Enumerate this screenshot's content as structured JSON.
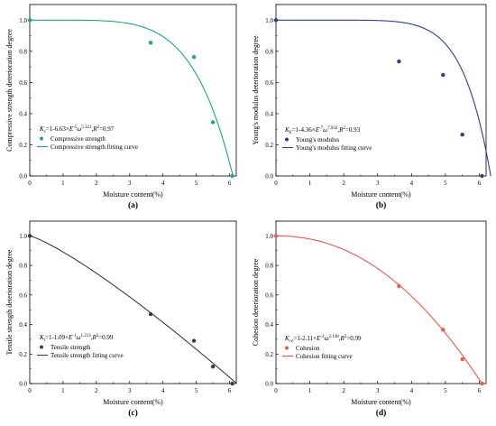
{
  "chart_data": [
    {
      "type": "scatter",
      "panel_label": "(a)",
      "xlabel": "Moisture content(%)",
      "ylabel": "Compressive strength deterioration degree",
      "xlim": [
        0,
        6.2
      ],
      "ylim": [
        0,
        1.1
      ],
      "xticks": [
        "0",
        "1",
        "2",
        "3",
        "4",
        "5",
        "6"
      ],
      "yticks": [
        "0.0",
        "0.2",
        "0.4",
        "0.6",
        "0.8",
        "1.0"
      ],
      "color": "#1aa68e",
      "equation": "Kc=1-6.63×E-5ω5.321,R2=0.97",
      "series": [
        {
          "name": "Compressive strength",
          "kind": "points",
          "x": [
            0,
            3.63,
            4.93,
            5.5,
            6.08
          ],
          "y": [
            1.0,
            0.855,
            0.763,
            0.345,
            0.0
          ]
        },
        {
          "name": "Compressive strength fitting curve",
          "kind": "curve",
          "A": 6.63e-05,
          "n": 5.321
        }
      ]
    },
    {
      "type": "scatter",
      "panel_label": "(b)",
      "xlabel": "Moisture content(%)",
      "ylabel": "Young's modulus deterioration degree",
      "xlim": [
        0,
        6.2
      ],
      "ylim": [
        0,
        1.1
      ],
      "xticks": [
        "0",
        "1",
        "2",
        "3",
        "4",
        "5",
        "6"
      ],
      "yticks": [
        "0.0",
        "0.2",
        "0.4",
        "0.6",
        "0.8",
        "1.0"
      ],
      "color": "#2b3f8e",
      "equation": "KE=1-4.36×E-7ω7.932,R2=0.93",
      "series": [
        {
          "name": "Young's modulus",
          "kind": "points",
          "x": [
            0,
            3.63,
            4.93,
            5.5,
            6.08
          ],
          "y": [
            1.0,
            0.735,
            0.648,
            0.265,
            0.0
          ]
        },
        {
          "name": "Young's modulus fitting curve",
          "kind": "curve",
          "A": 4.36e-07,
          "n": 7.932
        }
      ]
    },
    {
      "type": "scatter",
      "panel_label": "(c)",
      "xlabel": "Moisture content(%)",
      "ylabel": "Tensile strength deterioration degree",
      "xlim": [
        0,
        6.2
      ],
      "ylim": [
        0,
        1.1
      ],
      "xticks": [
        "0",
        "1",
        "2",
        "3",
        "4",
        "5",
        "6"
      ],
      "yticks": [
        "0.0",
        "0.2",
        "0.4",
        "0.6",
        "0.8",
        "1.0"
      ],
      "color": "#3c3c3c",
      "equation": "Kt=1-1.09×E-1ω1.213,R2=0.99",
      "series": [
        {
          "name": "Tensile strength",
          "kind": "points",
          "x": [
            0,
            3.63,
            4.93,
            5.5,
            6.08
          ],
          "y": [
            1.0,
            0.47,
            0.29,
            0.115,
            0.0
          ]
        },
        {
          "name": "Tensile strength fitting curve",
          "kind": "curve",
          "A": 0.109,
          "n": 1.213
        }
      ]
    },
    {
      "type": "scatter",
      "panel_label": "(d)",
      "xlabel": "Moisture content(%)",
      "ylabel": "Cohesion deterioration degree",
      "xlim": [
        0,
        6.2
      ],
      "ylim": [
        0,
        1.1
      ],
      "xticks": [
        "0",
        "1",
        "2",
        "3",
        "4",
        "5",
        "6"
      ],
      "yticks": [
        "0.0",
        "0.2",
        "0.4",
        "0.6",
        "0.8",
        "1.0"
      ],
      "color": "#f0574f",
      "equation": "Kco=1-2.11×E-2ω2.138,R2=0.99",
      "series": [
        {
          "name": "Cohesion",
          "kind": "points",
          "x": [
            0,
            3.63,
            4.93,
            5.5,
            6.08
          ],
          "y": [
            1.0,
            0.66,
            0.365,
            0.165,
            0.0
          ]
        },
        {
          "name": "Cohesion fitting curve",
          "kind": "curve",
          "A": 0.0211,
          "n": 2.138
        }
      ]
    }
  ]
}
